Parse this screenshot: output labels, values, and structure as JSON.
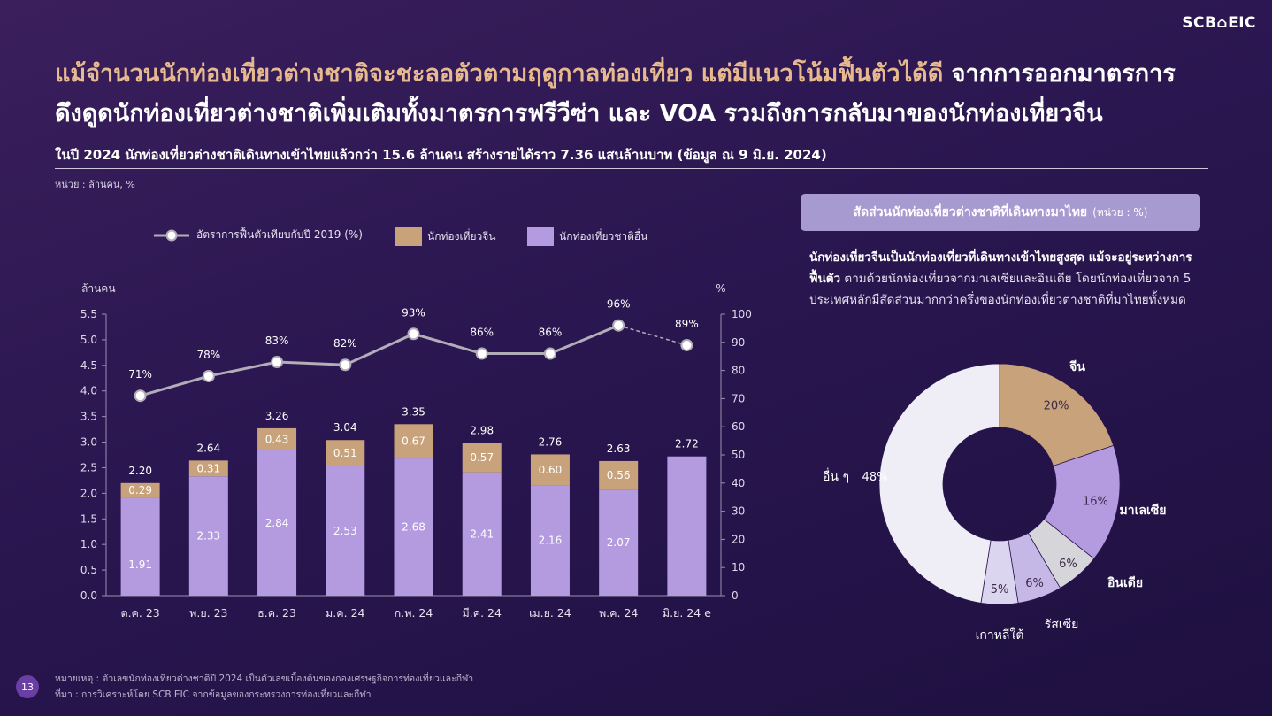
{
  "logo": "SCB⌂EIC",
  "title": {
    "line1_highlight": "แม้จำนวนนักท่องเที่ยวต่างชาติจะชะลอตัวตามฤดูกาลท่องเที่ยว แต่มีแนวโน้มฟื้นตัวได้ดี",
    "line1_rest": " จากการออกมาตรการ",
    "line2": "ดึงดูดนักท่องเที่ยวต่างชาติเพิ่มเติมทั้งมาตรการฟรีวีซ่า และ VOA รวมถึงการกลับมาของนักท่องเที่ยวจีน"
  },
  "subtitle": "ในปี 2024 นักท่องเที่ยวต่างชาติเดินทางเข้าไทยแล้วกว่า 15.6 ล้านคน สร้างรายได้ราว 7.36 แสนล้านบาท (ข้อมูล ณ 9 มิ.ย. 2024)",
  "unit": "หน่วย : ล้านคน, %",
  "legend": {
    "line": "อัตราการฟื้นตัวเทียบกับปี 2019 (%)",
    "china": "นักท่องเที่ยวจีน",
    "other": "นักท่องเที่ยวชาติอื่น"
  },
  "colors": {
    "china": "#c8a27a",
    "other": "#b49be0",
    "line": "#b3adb8",
    "gold_title": "#e7b98f",
    "donut_other": "#efedf5",
    "donut_malaysia": "#b49be0",
    "donut_india": "#d6d5d9",
    "donut_russia": "#c5b8e6",
    "donut_korea": "#dcd5f0"
  },
  "chart_data": [
    {
      "type": "bar",
      "stacked": true,
      "categories": [
        "ต.ค. 23",
        "พ.ย. 23",
        "ธ.ค. 23",
        "ม.ค. 24",
        "ก.พ. 24",
        "มี.ค. 24",
        "เม.ย. 24",
        "พ.ค. 24",
        "มิ.ย. 24 e"
      ],
      "ylabel_left": "ล้านคน",
      "ylabel_right": "%",
      "ylim_left": [
        0,
        5.5
      ],
      "ylim_right": [
        0,
        100
      ],
      "yticks_left": [
        "0.0",
        "0.5",
        "1.0",
        "1.5",
        "2.0",
        "2.5",
        "3.0",
        "3.5",
        "4.0",
        "4.5",
        "5.0",
        "5.5"
      ],
      "yticks_right": [
        "0",
        "10",
        "20",
        "30",
        "40",
        "50",
        "60",
        "70",
        "80",
        "90",
        "100"
      ],
      "series": [
        {
          "name": "นักท่องเที่ยวชาติอื่น",
          "values": [
            1.91,
            2.33,
            2.84,
            2.53,
            2.68,
            2.41,
            2.16,
            2.07,
            2.72
          ]
        },
        {
          "name": "นักท่องเที่ยวจีน",
          "values": [
            0.29,
            0.31,
            0.43,
            0.51,
            0.67,
            0.57,
            0.6,
            0.56,
            null
          ]
        }
      ],
      "other_labels": [
        "1.91",
        "2.33",
        "2.84",
        "2.53",
        "2.68",
        "2.41",
        "2.16",
        "2.07",
        ""
      ],
      "china_labels": [
        "0.29",
        "0.31",
        "0.43",
        "0.51",
        "0.67",
        "0.57",
        "0.60",
        "0.56",
        ""
      ],
      "totals": [
        "2.20",
        "2.64",
        "3.26",
        "3.04",
        "3.35",
        "2.98",
        "2.76",
        "2.63",
        "2.72"
      ],
      "line": {
        "name": "อัตราการฟื้นตัวเทียบกับปี 2019 (%)",
        "values": [
          71,
          78,
          83,
          82,
          93,
          86,
          86,
          96,
          89
        ],
        "labels": [
          "71%",
          "78%",
          "83%",
          "82%",
          "93%",
          "86%",
          "86%",
          "96%",
          "89%"
        ],
        "estimate_from_index": 8
      },
      "legend_position": "top"
    },
    {
      "type": "pie",
      "donut": true,
      "title": "สัดส่วนนักท่องเที่ยวต่างชาติที่เดินทางมาไทย",
      "unit": "(หน่วย : %)",
      "slices": [
        {
          "name": "จีน",
          "value": 20,
          "label": "20%"
        },
        {
          "name": "มาเลเซีย",
          "value": 16,
          "label": "16%"
        },
        {
          "name": "อินเดีย",
          "value": 6,
          "label": "6%"
        },
        {
          "name": "รัสเซีย",
          "value": 6,
          "label": "6%"
        },
        {
          "name": "เกาหลีใต้",
          "value": 5,
          "label": "5%"
        },
        {
          "name": "อื่น ๆ",
          "value": 48,
          "label": "48%"
        }
      ]
    }
  ],
  "panel": {
    "title": "สัดส่วนนักท่องเที่ยวต่างชาติที่เดินทางมาไทย",
    "unit": "(หน่วย : %)",
    "desc_bold": "นักท่องเที่ยวจีนเป็นนักท่องเที่ยวที่เดินทางเข้าไทยสูงสุด แม้จะอยู่ระหว่างการฟื้นตัว",
    "desc_rest": " ตามด้วยนักท่องเที่ยวจากมาเลเซียและอินเดีย โดยนักท่องเที่ยวจาก 5 ประเทศหลักมีสัดส่วนมากกว่าครึ่งของนักท่องเที่ยวต่างชาติที่มาไทยทั้งหมด"
  },
  "footnotes": {
    "note": "หมายเหตุ : ตัวเลขนักท่องเที่ยวต่างชาติปี 2024 เป็นตัวเลขเบื้องต้นของกองเศรษฐกิจการท่องเที่ยวและกีฬา",
    "source": "ที่มา : การวิเคราะห์โดย SCB EIC จากข้อมูลของกระทรวงการท่องเที่ยวและกีฬา"
  },
  "page_number": "13"
}
